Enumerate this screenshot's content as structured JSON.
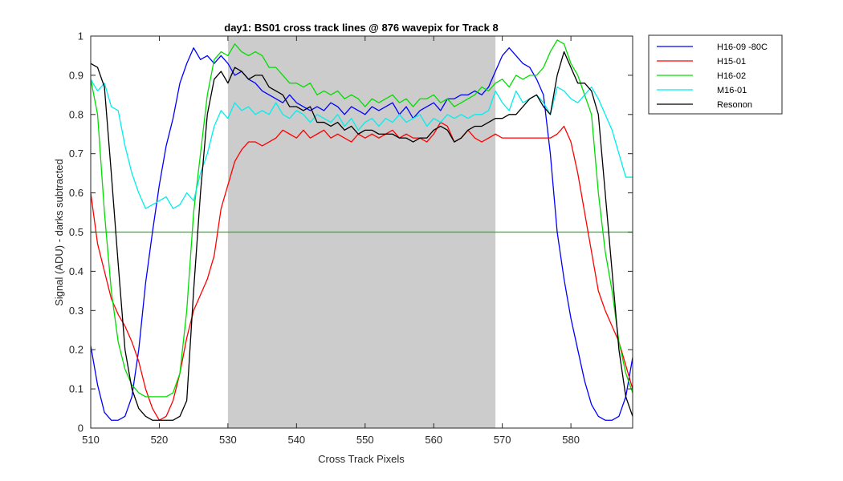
{
  "chart_data": {
    "type": "line",
    "title": "day1: BS01  cross track lines @ 876 wavepix for Track 8",
    "xlabel": "Cross Track Pixels",
    "ylabel": "Signal (ADU) - darks subtracted",
    "xlim": [
      510,
      589
    ],
    "ylim": [
      0,
      1
    ],
    "xticks": [
      "510",
      "520",
      "530",
      "540",
      "550",
      "560",
      "570",
      "580"
    ],
    "yticks": [
      "0",
      "0.1",
      "0.2",
      "0.3",
      "0.4",
      "0.5",
      "0.6",
      "0.7",
      "0.8",
      "0.9",
      "1"
    ],
    "shaded_region": [
      530,
      569
    ],
    "shaded_color": "#cccccc",
    "reference_line": {
      "y": 0.5,
      "color": "#00cc00"
    },
    "grid": false,
    "legend_position": "outside-top-right",
    "x": [
      510,
      511,
      512,
      513,
      514,
      515,
      516,
      517,
      518,
      519,
      520,
      521,
      522,
      523,
      524,
      525,
      526,
      527,
      528,
      529,
      530,
      531,
      532,
      533,
      534,
      535,
      536,
      537,
      538,
      539,
      540,
      541,
      542,
      543,
      544,
      545,
      546,
      547,
      548,
      549,
      550,
      551,
      552,
      553,
      554,
      555,
      556,
      557,
      558,
      559,
      560,
      561,
      562,
      563,
      564,
      565,
      566,
      567,
      568,
      569,
      570,
      571,
      572,
      573,
      574,
      575,
      576,
      577,
      578,
      579,
      580,
      581,
      582,
      583,
      584,
      585,
      586,
      587,
      588,
      589
    ],
    "series": [
      {
        "name": "H16-09 -80C",
        "color": "#0000ff",
        "values": [
          0.21,
          0.11,
          0.04,
          0.02,
          0.02,
          0.03,
          0.08,
          0.2,
          0.37,
          0.5,
          0.62,
          0.72,
          0.79,
          0.88,
          0.93,
          0.97,
          0.94,
          0.95,
          0.93,
          0.95,
          0.93,
          0.9,
          0.91,
          0.89,
          0.88,
          0.86,
          0.85,
          0.84,
          0.83,
          0.85,
          0.83,
          0.82,
          0.81,
          0.82,
          0.81,
          0.83,
          0.82,
          0.8,
          0.82,
          0.81,
          0.8,
          0.82,
          0.81,
          0.82,
          0.83,
          0.8,
          0.82,
          0.79,
          0.81,
          0.82,
          0.83,
          0.81,
          0.84,
          0.84,
          0.85,
          0.85,
          0.86,
          0.85,
          0.87,
          0.91,
          0.95,
          0.97,
          0.95,
          0.93,
          0.92,
          0.89,
          0.85,
          0.7,
          0.5,
          0.38,
          0.28,
          0.2,
          0.12,
          0.06,
          0.03,
          0.02,
          0.02,
          0.03,
          0.08,
          0.18
        ]
      },
      {
        "name": "H15-01",
        "color": "#ff0000",
        "values": [
          0.6,
          0.47,
          0.4,
          0.33,
          0.29,
          0.26,
          0.22,
          0.17,
          0.1,
          0.05,
          0.02,
          0.03,
          0.07,
          0.14,
          0.23,
          0.3,
          0.34,
          0.38,
          0.44,
          0.56,
          0.62,
          0.68,
          0.71,
          0.73,
          0.73,
          0.72,
          0.73,
          0.74,
          0.76,
          0.75,
          0.74,
          0.76,
          0.74,
          0.75,
          0.76,
          0.74,
          0.75,
          0.74,
          0.73,
          0.75,
          0.74,
          0.75,
          0.74,
          0.75,
          0.76,
          0.74,
          0.75,
          0.74,
          0.74,
          0.73,
          0.75,
          0.78,
          0.77,
          0.73,
          0.74,
          0.76,
          0.74,
          0.73,
          0.74,
          0.75,
          0.74,
          0.74,
          0.74,
          0.74,
          0.74,
          0.74,
          0.74,
          0.74,
          0.75,
          0.77,
          0.73,
          0.65,
          0.55,
          0.45,
          0.35,
          0.3,
          0.26,
          0.22,
          0.16,
          0.1
        ]
      },
      {
        "name": "H16-02",
        "color": "#00dd00",
        "values": [
          0.89,
          0.8,
          0.55,
          0.35,
          0.22,
          0.15,
          0.11,
          0.09,
          0.08,
          0.08,
          0.08,
          0.08,
          0.09,
          0.14,
          0.3,
          0.55,
          0.7,
          0.85,
          0.94,
          0.96,
          0.95,
          0.98,
          0.96,
          0.95,
          0.96,
          0.95,
          0.92,
          0.92,
          0.9,
          0.88,
          0.88,
          0.87,
          0.88,
          0.85,
          0.86,
          0.85,
          0.86,
          0.84,
          0.85,
          0.84,
          0.82,
          0.84,
          0.83,
          0.84,
          0.85,
          0.83,
          0.84,
          0.82,
          0.84,
          0.84,
          0.85,
          0.83,
          0.84,
          0.82,
          0.83,
          0.84,
          0.85,
          0.87,
          0.86,
          0.88,
          0.89,
          0.87,
          0.9,
          0.89,
          0.9,
          0.9,
          0.92,
          0.96,
          0.99,
          0.98,
          0.93,
          0.9,
          0.85,
          0.8,
          0.6,
          0.45,
          0.35,
          0.22,
          0.14,
          0.09
        ]
      },
      {
        "name": "M16-01",
        "color": "#00eeee",
        "values": [
          0.89,
          0.86,
          0.88,
          0.82,
          0.81,
          0.72,
          0.65,
          0.6,
          0.56,
          0.57,
          0.58,
          0.59,
          0.56,
          0.57,
          0.6,
          0.58,
          0.65,
          0.7,
          0.77,
          0.81,
          0.79,
          0.83,
          0.81,
          0.82,
          0.8,
          0.81,
          0.8,
          0.83,
          0.8,
          0.79,
          0.81,
          0.8,
          0.78,
          0.8,
          0.79,
          0.78,
          0.8,
          0.77,
          0.79,
          0.76,
          0.78,
          0.79,
          0.77,
          0.79,
          0.78,
          0.8,
          0.78,
          0.79,
          0.8,
          0.77,
          0.79,
          0.78,
          0.8,
          0.79,
          0.8,
          0.79,
          0.8,
          0.8,
          0.81,
          0.86,
          0.83,
          0.81,
          0.86,
          0.83,
          0.84,
          0.85,
          0.83,
          0.8,
          0.87,
          0.86,
          0.84,
          0.83,
          0.85,
          0.87,
          0.84,
          0.8,
          0.76,
          0.7,
          0.64,
          0.64
        ]
      },
      {
        "name": "Resonon",
        "color": "#000000",
        "values": [
          0.93,
          0.92,
          0.87,
          0.65,
          0.42,
          0.2,
          0.1,
          0.05,
          0.03,
          0.02,
          0.02,
          0.02,
          0.02,
          0.03,
          0.07,
          0.35,
          0.6,
          0.8,
          0.89,
          0.91,
          0.88,
          0.92,
          0.91,
          0.89,
          0.9,
          0.9,
          0.87,
          0.86,
          0.85,
          0.82,
          0.82,
          0.81,
          0.82,
          0.78,
          0.78,
          0.77,
          0.78,
          0.76,
          0.77,
          0.75,
          0.76,
          0.76,
          0.75,
          0.75,
          0.75,
          0.74,
          0.74,
          0.73,
          0.74,
          0.74,
          0.76,
          0.77,
          0.76,
          0.73,
          0.74,
          0.76,
          0.77,
          0.77,
          0.78,
          0.79,
          0.79,
          0.8,
          0.8,
          0.82,
          0.84,
          0.85,
          0.82,
          0.8,
          0.9,
          0.96,
          0.92,
          0.88,
          0.88,
          0.86,
          0.8,
          0.6,
          0.4,
          0.2,
          0.08,
          0.03
        ]
      }
    ]
  }
}
